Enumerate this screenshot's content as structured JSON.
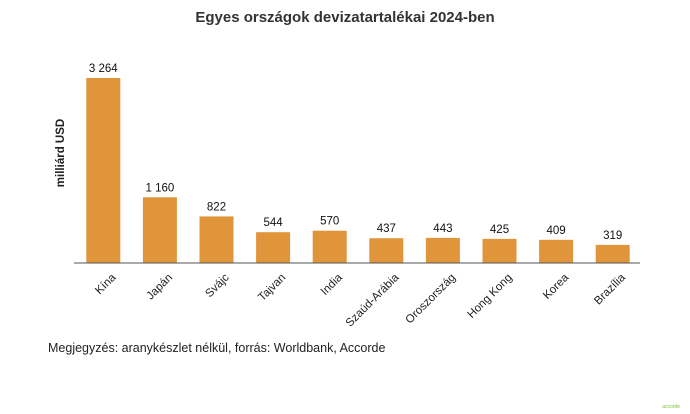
{
  "chart_data": {
    "type": "bar",
    "title": "Egyes országok devizatartalékai 2024-ben",
    "ylabel": "milliárd USD",
    "xlabel": "",
    "categories": [
      "Kína",
      "Japán",
      "Svájc",
      "Tajvan",
      "India",
      "Szaúd-Arábia",
      "Oroszország",
      "Hong Kong",
      "Korea",
      "Brazília"
    ],
    "values": [
      3264,
      1160,
      822,
      544,
      570,
      437,
      443,
      425,
      409,
      319
    ],
    "value_labels": [
      "3 264",
      "1 160",
      "822",
      "544",
      "570",
      "437",
      "443",
      "425",
      "409",
      "319"
    ],
    "ylim": [
      0,
      3264
    ],
    "grid": false,
    "legend": "none",
    "bar_color": "#E0953A"
  },
  "note": "Megjegyzés: aranykészlet nélkül, forrás: Worldbank, Accorde",
  "brand": "accorde"
}
